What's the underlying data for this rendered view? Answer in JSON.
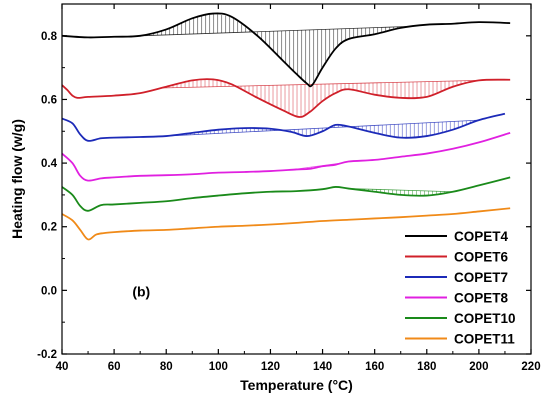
{
  "chart_data": {
    "type": "line",
    "xlabel": "Temperature (°C)",
    "ylabel": "Heating flow (w/g)",
    "xlim": [
      40,
      220
    ],
    "ylim": [
      -0.2,
      0.9
    ],
    "xticks": [
      40,
      60,
      80,
      100,
      120,
      140,
      160,
      180,
      200,
      220
    ],
    "yticks": [
      -0.2,
      0.0,
      0.2,
      0.4,
      0.6,
      0.8
    ],
    "ytick_labels": [
      "-0.2",
      "0.0",
      "0.2",
      "0.4",
      "0.6",
      "0.8"
    ],
    "annotation": "(b)",
    "legend_position": "bottom-right",
    "series": [
      {
        "name": "COPET4",
        "color": "#000000",
        "x": [
          40,
          50,
          60,
          70,
          80,
          90,
          98,
          105,
          115,
          125,
          130,
          134,
          136,
          140,
          145,
          150,
          160,
          170,
          180,
          190,
          200,
          212
        ],
        "y": [
          0.8,
          0.795,
          0.797,
          0.8,
          0.82,
          0.855,
          0.87,
          0.86,
          0.8,
          0.72,
          0.68,
          0.65,
          0.645,
          0.7,
          0.76,
          0.79,
          0.805,
          0.825,
          0.835,
          0.838,
          0.843,
          0.84
        ],
        "shaded_regions": [
          [
            66,
            175
          ]
        ]
      },
      {
        "name": "COPET6",
        "color": "#d0202a",
        "x": [
          40,
          42,
          44,
          46,
          50,
          60,
          70,
          80,
          90,
          98,
          105,
          115,
          125,
          131,
          135,
          140,
          145,
          150,
          160,
          170,
          180,
          190,
          200,
          212
        ],
        "y": [
          0.645,
          0.63,
          0.612,
          0.605,
          0.608,
          0.612,
          0.62,
          0.64,
          0.66,
          0.663,
          0.648,
          0.605,
          0.565,
          0.545,
          0.56,
          0.595,
          0.62,
          0.632,
          0.615,
          0.605,
          0.608,
          0.64,
          0.66,
          0.662
        ],
        "shaded_regions": [
          [
            78,
            200
          ]
        ]
      },
      {
        "name": "COPET7",
        "color": "#1c2ab8",
        "x": [
          40,
          44,
          47,
          50,
          55,
          60,
          70,
          80,
          90,
          100,
          110,
          120,
          128,
          134,
          140,
          145,
          150,
          160,
          170,
          180,
          190,
          200,
          210
        ],
        "y": [
          0.54,
          0.525,
          0.49,
          0.47,
          0.478,
          0.48,
          0.482,
          0.485,
          0.495,
          0.505,
          0.51,
          0.508,
          0.498,
          0.485,
          0.5,
          0.52,
          0.515,
          0.495,
          0.48,
          0.485,
          0.505,
          0.535,
          0.555
        ],
        "shaded_regions": [
          [
            80,
            200
          ]
        ]
      },
      {
        "name": "COPET8",
        "color": "#e020e0",
        "x": [
          40,
          44,
          47,
          50,
          55,
          60,
          70,
          80,
          90,
          100,
          110,
          120,
          130,
          135,
          140,
          145,
          150,
          160,
          170,
          180,
          190,
          200,
          212
        ],
        "y": [
          0.43,
          0.4,
          0.36,
          0.345,
          0.352,
          0.355,
          0.36,
          0.362,
          0.365,
          0.37,
          0.372,
          0.375,
          0.38,
          0.382,
          0.39,
          0.395,
          0.405,
          0.41,
          0.42,
          0.43,
          0.445,
          0.465,
          0.495
        ],
        "shaded_regions": [
          [
            128,
            148
          ]
        ]
      },
      {
        "name": "COPET10",
        "color": "#1a8a1a",
        "x": [
          40,
          44,
          47,
          50,
          55,
          60,
          70,
          80,
          90,
          100,
          110,
          120,
          130,
          140,
          145,
          150,
          160,
          170,
          180,
          190,
          200,
          212
        ],
        "y": [
          0.325,
          0.3,
          0.265,
          0.25,
          0.268,
          0.27,
          0.275,
          0.28,
          0.29,
          0.298,
          0.305,
          0.31,
          0.312,
          0.318,
          0.325,
          0.32,
          0.31,
          0.3,
          0.298,
          0.31,
          0.33,
          0.355
        ],
        "shaded_regions": [
          [
            150,
            190
          ]
        ]
      },
      {
        "name": "COPET11",
        "color": "#f08a18",
        "x": [
          40,
          44,
          47,
          50,
          53,
          56,
          60,
          70,
          80,
          90,
          100,
          110,
          120,
          130,
          140,
          150,
          160,
          170,
          180,
          190,
          200,
          212
        ],
        "y": [
          0.24,
          0.22,
          0.19,
          0.16,
          0.175,
          0.18,
          0.183,
          0.188,
          0.19,
          0.195,
          0.2,
          0.203,
          0.207,
          0.212,
          0.218,
          0.222,
          0.226,
          0.23,
          0.235,
          0.24,
          0.248,
          0.258
        ],
        "shaded_regions": []
      }
    ]
  }
}
